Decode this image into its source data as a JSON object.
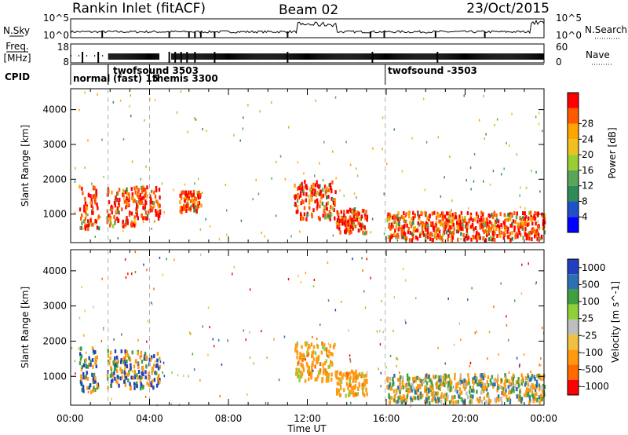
{
  "header": {
    "title_left": "Rankin Inlet (fitACF)",
    "title_center": "Beam 02",
    "title_right": "23/Oct/2015"
  },
  "noise_panel": {
    "left_label": "N.Sky",
    "right_label": "N.Search",
    "left_ticks": [
      "10^5",
      "10^0"
    ],
    "right_ticks": [
      "10^5",
      "10^0"
    ]
  },
  "freq_panel": {
    "left_label_top": "Freq.",
    "left_label_unit": "[MHz]",
    "right_label": "Nave",
    "left_ticks": [
      "18",
      "8"
    ],
    "right_ticks": [
      "60",
      "0"
    ]
  },
  "cpid_panel": {
    "label": "CPID",
    "modes": [
      {
        "label": "normal",
        "start_hour": 0.0
      },
      {
        "label": "twofsound 3503",
        "start_hour": 1.9
      },
      {
        "label": "(fast) 15",
        "start_hour": 1.9
      },
      {
        "label": "themis 3300",
        "start_hour": 4.0
      },
      {
        "label": "twofsound -3503",
        "start_hour": 15.95
      }
    ]
  },
  "x_axis": {
    "ticks": [
      "00:00",
      "04:00",
      "08:00",
      "12:00",
      "16:00",
      "20:00",
      "00:00"
    ],
    "label": "Time UT"
  },
  "colors": {
    "power": [
      "#0000ff",
      "#2050c8",
      "#2e8b57",
      "#5aa55a",
      "#9acd32",
      "#f0c020",
      "#ffa500",
      "#ff5a00",
      "#ff0000"
    ],
    "velocity": [
      "#ff0000",
      "#ff6a00",
      "#ff9a10",
      "#f0c040",
      "#bebebe",
      "#8ed038",
      "#40a040",
      "#2e6fb0",
      "#2040c0"
    ]
  },
  "chart_data": [
    {
      "type": "heatmap",
      "name": "power",
      "ylabel": "Slant Range [km]",
      "ylim": [
        180,
        4600
      ],
      "xlim_hours": [
        0,
        24
      ],
      "yticks": [
        "1000",
        "2000",
        "3000",
        "4000"
      ],
      "colorbar": {
        "label": "Power [dB]",
        "ticks": [
          "4",
          "8",
          "12",
          "16",
          "20",
          "24",
          "28"
        ],
        "range": [
          0,
          32
        ]
      },
      "scatter_regions": [
        {
          "t": [
            0.4,
            1.4
          ],
          "r": [
            600,
            1850
          ],
          "level": 26
        },
        {
          "t": [
            1.8,
            3.3
          ],
          "r": [
            700,
            1800
          ],
          "level": 22
        },
        {
          "t": [
            3.3,
            4.5
          ],
          "r": [
            900,
            1850
          ],
          "level": 21
        },
        {
          "t": [
            5.5,
            6.6
          ],
          "r": [
            1100,
            1700
          ],
          "level": 20
        },
        {
          "t": [
            11.3,
            13.4
          ],
          "r": [
            900,
            2000
          ],
          "level": 24
        },
        {
          "t": [
            13.4,
            15.0
          ],
          "r": [
            500,
            1200
          ],
          "level": 22
        },
        {
          "t": [
            16.0,
            24.0
          ],
          "r": [
            300,
            1100
          ],
          "level": 27
        }
      ]
    },
    {
      "type": "heatmap",
      "name": "velocity",
      "ylabel": "Slant Range [km]",
      "ylim": [
        180,
        4600
      ],
      "xlim_hours": [
        0,
        24
      ],
      "yticks": [
        "1000",
        "2000",
        "3000",
        "4000"
      ],
      "colorbar": {
        "label": "Velocity [m s^-1]",
        "ticks": [
          "1000",
          "500",
          "100",
          "25",
          "-25",
          "-100",
          "-500",
          "-1000"
        ]
      },
      "scatter_regions": [
        {
          "t": [
            0.4,
            1.4
          ],
          "r": [
            600,
            1850
          ],
          "level": "blue-green"
        },
        {
          "t": [
            1.8,
            4.5
          ],
          "r": [
            700,
            1800
          ],
          "level": "blue-orange"
        },
        {
          "t": [
            11.3,
            13.4
          ],
          "r": [
            900,
            2000
          ],
          "level": "orange"
        },
        {
          "t": [
            13.4,
            15.0
          ],
          "r": [
            500,
            1200
          ],
          "level": "orange"
        },
        {
          "t": [
            16.0,
            24.0
          ],
          "r": [
            300,
            1100
          ],
          "level": "orange-green"
        }
      ]
    }
  ]
}
